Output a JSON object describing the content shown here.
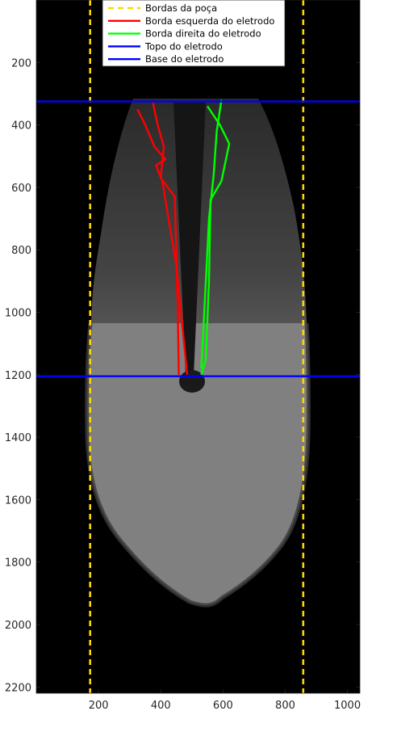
{
  "chart_data": {
    "type": "image",
    "title": "",
    "xlabel": "",
    "ylabel": "",
    "xlim": [
      0,
      1040
    ],
    "ylim": [
      2220,
      0
    ],
    "x_ticks": [
      200,
      400,
      600,
      800,
      1000
    ],
    "y_ticks": [
      200,
      400,
      600,
      800,
      1000,
      1200,
      1400,
      1600,
      1800,
      2000,
      2200
    ],
    "legend_position": "top",
    "series": [
      {
        "name": "Bordas da poça",
        "style": "dashed",
        "color": "#ffd700",
        "lines": [
          {
            "x": [
              173,
              173
            ],
            "y": [
              0,
              2220
            ]
          },
          {
            "x": [
              858,
              858
            ],
            "y": [
              0,
              2220
            ]
          }
        ]
      },
      {
        "name": "Borda esquerda do eletrodo",
        "style": "solid",
        "color": "#ff0000",
        "lines": [
          {
            "x": [
              375,
              390,
              410,
              400,
              445,
              455,
              458
            ],
            "y": [
              330,
              400,
              470,
              570,
              630,
              1000,
              1200
            ]
          },
          {
            "x": [
              325,
              350,
              380,
              415,
              385,
              405,
              450,
              485
            ],
            "y": [
              350,
              400,
              470,
              510,
              530,
              580,
              850,
              1200
            ]
          }
        ]
      },
      {
        "name": "Borda direita do eletrodo",
        "style": "solid",
        "color": "#00ff00",
        "lines": [
          {
            "x": [
              595,
              580,
              570,
              555,
              545,
              530
            ],
            "y": [
              320,
              420,
              560,
              700,
              900,
              1180
            ]
          },
          {
            "x": [
              550,
              590,
              620,
              595,
              560,
              555,
              545,
              530
            ],
            "y": [
              340,
              400,
              460,
              580,
              640,
              900,
              1150,
              1200
            ]
          }
        ]
      },
      {
        "name": "Topo do eletrodo",
        "style": "solid",
        "color": "#0000ff",
        "lines": [
          {
            "x": [
              0,
              1040
            ],
            "y": [
              325,
              325
            ]
          }
        ]
      },
      {
        "name": "Base do eletrodo",
        "style": "solid",
        "color": "#0000ff",
        "lines": [
          {
            "x": [
              0,
              1040
            ],
            "y": [
              1205,
              1205
            ]
          }
        ]
      }
    ],
    "image": {
      "background": "#000000",
      "regions": [
        {
          "name": "upper-pool",
          "color": "#3a3a3a"
        },
        {
          "name": "lower-pool",
          "color": "#808080"
        },
        {
          "name": "electrode-tip",
          "color": "#1a1a1a"
        }
      ]
    }
  }
}
